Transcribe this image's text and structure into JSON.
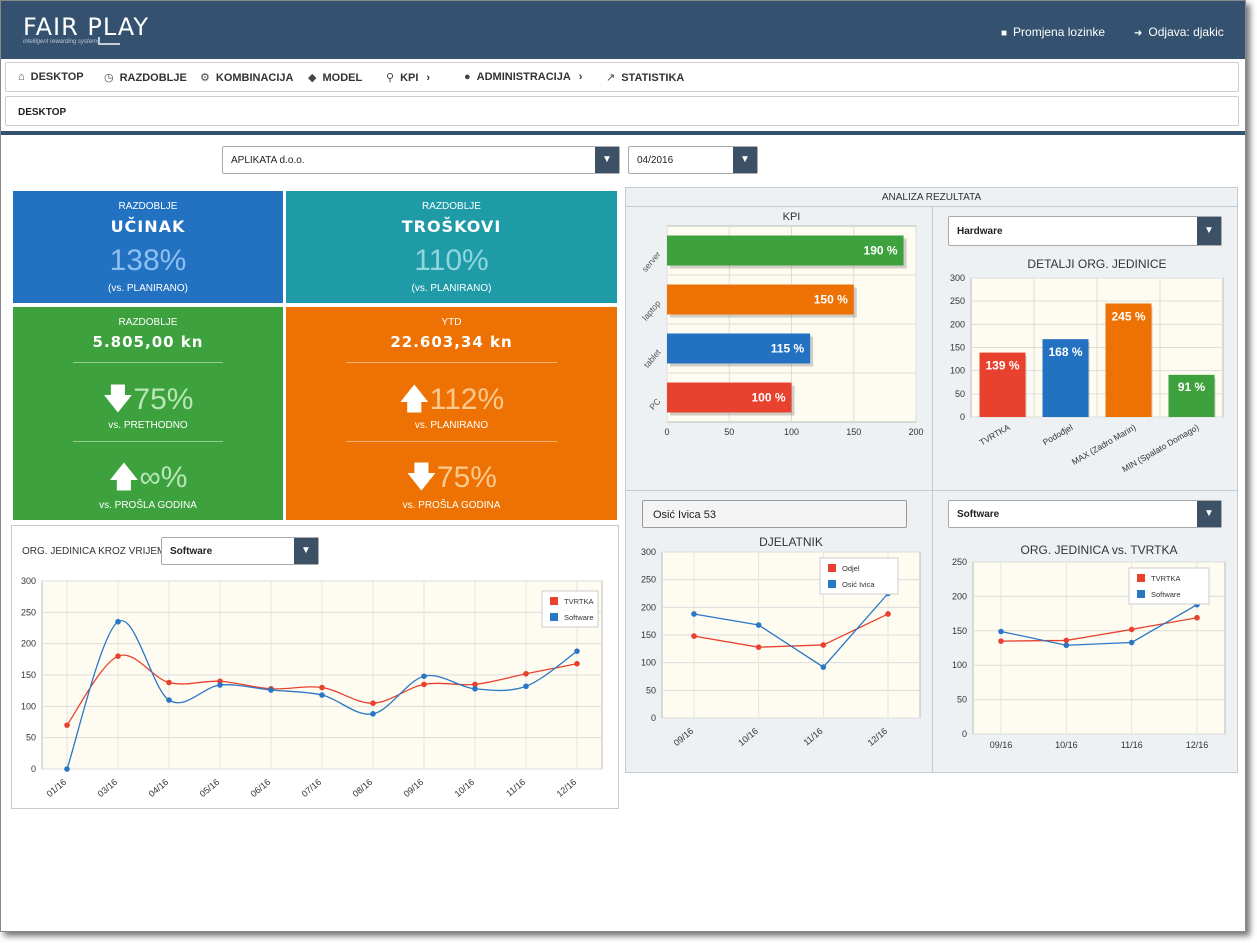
{
  "app": {
    "logo": "FAIR PLAY",
    "tagline": "intelligent rewarding systems"
  },
  "header": {
    "change_password": "Promjena lozinke",
    "logout": "Odjava: djakic"
  },
  "nav": [
    {
      "label": "DESKTOP",
      "icon": "home-icon"
    },
    {
      "label": "RAZDOBLJE",
      "icon": "clock-icon"
    },
    {
      "label": "KOMBINACIJA",
      "icon": "cogs-icon"
    },
    {
      "label": "MODEL",
      "icon": "cube-icon"
    },
    {
      "label": "KPI",
      "icon": "lightbulb-icon"
    },
    {
      "label": "ADMINISTRACIJA",
      "icon": "user-icon"
    },
    {
      "label": "STATISTIKA",
      "icon": "line-chart-icon"
    }
  ],
  "breadcrumb": "DESKTOP",
  "filters": {
    "company": "APLIKATA d.o.o.",
    "period": "04/2016"
  },
  "tiles": {
    "ucinak": {
      "top": "RAZDOBLJE",
      "title": "UČINAK",
      "value": "138%",
      "sub": "(vs. PLANIRANO)",
      "color": "#2371c1"
    },
    "troskovi": {
      "top": "RAZDOBLJE",
      "title": "TROŠKOVI",
      "value": "110%",
      "sub": "(vs. PLANIRANO)",
      "color": "#1f9aa7"
    },
    "razdoblje": {
      "top": "RAZDOBLJE",
      "amount": "5.805,00 kn",
      "v1": "75%",
      "l1": "vs. PRETHODNO",
      "v2": "∞%",
      "l2": "vs. PROŠLA GODINA",
      "color": "#3da13e"
    },
    "ytd": {
      "top": "YTD",
      "amount": "22.603,34 kn",
      "v1": "112%",
      "l1": "vs. PLANIRANO",
      "v2": "75%",
      "l2": "vs. PROŠLA GODINA",
      "color": "#ee7203"
    }
  },
  "org_time": {
    "label": "ORG. JEDINICA KROZ VRIJEME",
    "select": "Software"
  },
  "analysis": {
    "title": "ANALIZA REZULTATA",
    "hardware_select": "Hardware",
    "employee_field": "Osić Ivica 53",
    "software_select": "Software"
  },
  "chart_data": [
    {
      "type": "line",
      "title": "",
      "x": [
        "01/16",
        "03/16",
        "04/16",
        "05/16",
        "06/16",
        "07/16",
        "08/16",
        "09/16",
        "10/16",
        "11/16",
        "12/16"
      ],
      "series": [
        {
          "name": "TVRTKA",
          "color": "#e8422f",
          "values": [
            70,
            180,
            138,
            140,
            128,
            130,
            105,
            135,
            135,
            152,
            168
          ]
        },
        {
          "name": "Software",
          "color": "#2a77c6",
          "values": [
            0,
            235,
            110,
            134,
            126,
            118,
            88,
            148,
            128,
            132,
            188
          ]
        }
      ],
      "ylim": [
        0,
        300
      ],
      "yticks": [
        "0",
        "50",
        "100",
        "150",
        "200",
        "250",
        "300"
      ],
      "legend": "top-right"
    },
    {
      "type": "bar",
      "orientation": "horizontal",
      "title": "KPI",
      "categories": [
        "server",
        "laptop",
        "tablet",
        "PC"
      ],
      "values": [
        190,
        150,
        115,
        100
      ],
      "labels": [
        "190 %",
        "150 %",
        "115 %",
        "100 %"
      ],
      "colors": [
        "#3da13e",
        "#ee7203",
        "#2371c1",
        "#e8422f"
      ],
      "xlim": [
        0,
        200
      ],
      "xticks": [
        "0",
        "50",
        "100",
        "150",
        "200"
      ]
    },
    {
      "type": "bar",
      "title": "DETALJI ORG. JEDINICE",
      "categories": [
        "TVRTKA",
        "Podođjel",
        "MAX (Zadro Marin)",
        "MIN (Spalato Domago)"
      ],
      "values": [
        139,
        168,
        245,
        91
      ],
      "labels": [
        "139 %",
        "168 %",
        "245 %",
        "91 %"
      ],
      "colors": [
        "#e8422f",
        "#2371c1",
        "#ee7203",
        "#3da13e"
      ],
      "ylim": [
        0,
        300
      ],
      "yticks": [
        "0",
        "50",
        "100",
        "150",
        "200",
        "250",
        "300"
      ]
    },
    {
      "type": "line",
      "title": "DJELATNIK",
      "x": [
        "09/16",
        "10/16",
        "11/16",
        "12/16"
      ],
      "series": [
        {
          "name": "Odjel",
          "color": "#e8422f",
          "values": [
            148,
            128,
            132,
            188
          ]
        },
        {
          "name": "Osić Ivica",
          "color": "#2a77c6",
          "values": [
            188,
            168,
            92,
            225
          ]
        }
      ],
      "ylim": [
        0,
        300
      ],
      "yticks": [
        "0",
        "50",
        "100",
        "150",
        "200",
        "250",
        "300"
      ],
      "legend": "top-right"
    },
    {
      "type": "line",
      "title": "ORG. JEDINICA vs. TVRTKA",
      "x": [
        "09/16",
        "10/16",
        "11/16",
        "12/16"
      ],
      "series": [
        {
          "name": "TVRTKA",
          "color": "#e8422f",
          "values": [
            135,
            136,
            152,
            169
          ]
        },
        {
          "name": "Software",
          "color": "#2a77c6",
          "values": [
            149,
            129,
            133,
            188
          ]
        }
      ],
      "ylim": [
        0,
        250
      ],
      "yticks": [
        "0",
        "50",
        "100",
        "150",
        "200",
        "250"
      ],
      "legend": "top-right"
    }
  ]
}
